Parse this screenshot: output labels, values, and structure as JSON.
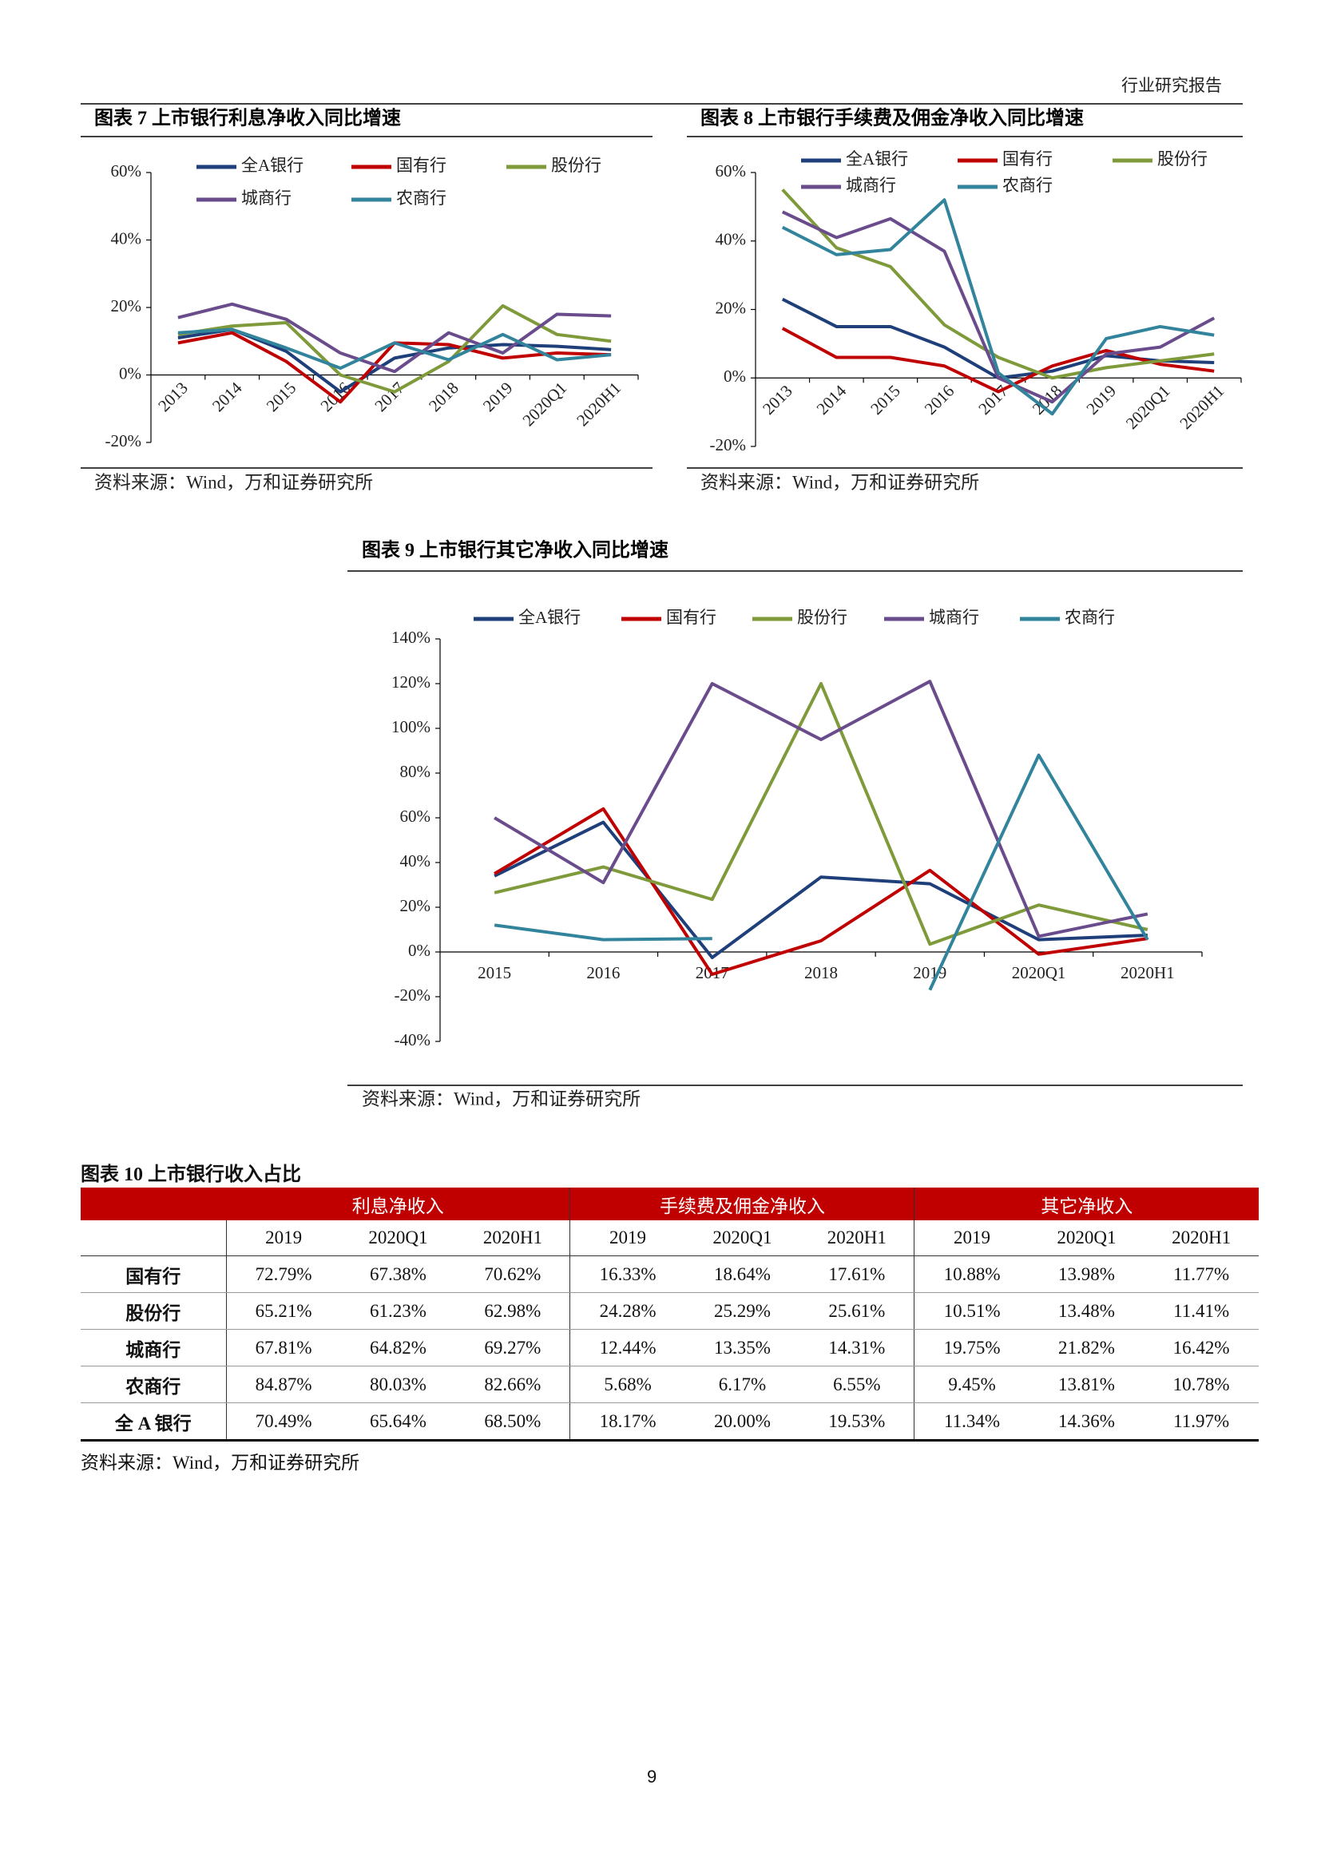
{
  "header": {
    "title": "行业研究报告"
  },
  "chart_data": [
    {
      "type": "line",
      "title": "图表 7 上市银行利息净收入同比增速",
      "source": "资料来源：Wind，万和证券研究所",
      "categories": [
        "2013",
        "2014",
        "2015",
        "2016",
        "2017",
        "2018",
        "2019",
        "2020Q1",
        "2020H1"
      ],
      "series": [
        {
          "name": "全A银行",
          "color": "#1f3f7a",
          "values": [
            11,
            13.5,
            7,
            -5,
            5,
            8,
            9,
            8.5,
            7.5
          ]
        },
        {
          "name": "国有行",
          "color": "#c00000",
          "values": [
            9.5,
            12.5,
            4,
            -8,
            9.5,
            9,
            5,
            6.5,
            6
          ]
        },
        {
          "name": "股份行",
          "color": "#7f9a3a",
          "values": [
            12,
            14.5,
            15.5,
            0,
            -5,
            4,
            20.5,
            12,
            10
          ]
        },
        {
          "name": "城商行",
          "color": "#6a4c8c",
          "values": [
            17,
            21,
            16.5,
            6.5,
            1,
            12.5,
            6.5,
            18,
            17.5
          ]
        },
        {
          "name": "农商行",
          "color": "#31849b",
          "values": [
            12.5,
            13.5,
            8,
            2,
            9.5,
            4.5,
            12,
            4.5,
            6
          ]
        }
      ],
      "ylim": [
        -20,
        60
      ],
      "yticks": [
        {
          "value": -20,
          "label": "-20%"
        },
        {
          "value": 0,
          "label": "0%"
        },
        {
          "value": 20,
          "label": "20%"
        },
        {
          "value": 40,
          "label": "40%"
        },
        {
          "value": 60,
          "label": "60%"
        }
      ]
    },
    {
      "type": "line",
      "title": "图表 8 上市银行手续费及佣金净收入同比增速",
      "source": "资料来源：Wind，万和证券研究所",
      "categories": [
        "2013",
        "2014",
        "2015",
        "2016",
        "2017",
        "2018",
        "2019",
        "2020Q1",
        "2020H1"
      ],
      "series": [
        {
          "name": "全A银行",
          "color": "#1f3f7a",
          "values": [
            23,
            15,
            15,
            9,
            0,
            2,
            6.5,
            5,
            4.5
          ]
        },
        {
          "name": "国有行",
          "color": "#c00000",
          "values": [
            14.5,
            6,
            6,
            3.5,
            -4,
            3.5,
            8,
            4,
            2
          ]
        },
        {
          "name": "股份行",
          "color": "#7f9a3a",
          "values": [
            55,
            38,
            32.5,
            15.5,
            6,
            0,
            3,
            5,
            7
          ]
        },
        {
          "name": "城商行",
          "color": "#6a4c8c",
          "values": [
            48.5,
            41,
            46.5,
            37,
            0,
            -7,
            7,
            9,
            17.5
          ]
        },
        {
          "name": "农商行",
          "color": "#31849b",
          "values": [
            44,
            36,
            37.5,
            52,
            1.5,
            -10.5,
            11.5,
            15,
            12.5
          ]
        }
      ],
      "ylim": [
        -20,
        60
      ],
      "yticks": [
        {
          "value": -20,
          "label": "-20%"
        },
        {
          "value": 0,
          "label": "0%"
        },
        {
          "value": 20,
          "label": "20%"
        },
        {
          "value": 40,
          "label": "40%"
        },
        {
          "value": 60,
          "label": "60%"
        }
      ]
    },
    {
      "type": "line",
      "title": "图表 9 上市银行其它净收入同比增速",
      "source": "资料来源：Wind，万和证券研究所",
      "categories": [
        "2015",
        "2016",
        "2017",
        "2018",
        "2019",
        "2020Q1",
        "2020H1"
      ],
      "series": [
        {
          "name": "全A银行",
          "color": "#1f3f7a",
          "values": [
            34,
            58,
            -2.5,
            33.5,
            30.5,
            5.5,
            7.5
          ]
        },
        {
          "name": "国有行",
          "color": "#c00000",
          "values": [
            35,
            64,
            -10,
            5,
            36.5,
            -1,
            6
          ]
        },
        {
          "name": "股份行",
          "color": "#7f9a3a",
          "values": [
            26.5,
            38,
            23.5,
            120,
            3.5,
            21,
            10
          ]
        },
        {
          "name": "城商行",
          "color": "#6a4c8c",
          "values": [
            60,
            31,
            120,
            95,
            121,
            7,
            17
          ]
        },
        {
          "name": "农商行",
          "color": "#31849b",
          "values": [
            12,
            5.5,
            6,
            null,
            -17,
            88,
            5.5
          ]
        }
      ],
      "ylim": [
        -40,
        140
      ],
      "yticks": [
        {
          "value": -40,
          "label": "-40%"
        },
        {
          "value": -20,
          "label": "-20%"
        },
        {
          "value": 0,
          "label": "0%"
        },
        {
          "value": 20,
          "label": "20%"
        },
        {
          "value": 40,
          "label": "40%"
        },
        {
          "value": 60,
          "label": "60%"
        },
        {
          "value": 80,
          "label": "80%"
        },
        {
          "value": 100,
          "label": "100%"
        },
        {
          "value": 120,
          "label": "120%"
        },
        {
          "value": 140,
          "label": "140%"
        }
      ]
    }
  ],
  "table": {
    "title": "图表 10 上市银行收入占比",
    "groups": [
      "利息净收入",
      "手续费及佣金净收入",
      "其它净收入"
    ],
    "columns": [
      "2019",
      "2020Q1",
      "2020H1",
      "2019",
      "2020Q1",
      "2020H1",
      "2019",
      "2020Q1",
      "2020H1"
    ],
    "rows": [
      {
        "label": "国有行",
        "values": [
          "72.79%",
          "67.38%",
          "70.62%",
          "16.33%",
          "18.64%",
          "17.61%",
          "10.88%",
          "13.98%",
          "11.77%"
        ]
      },
      {
        "label": "股份行",
        "values": [
          "65.21%",
          "61.23%",
          "62.98%",
          "24.28%",
          "25.29%",
          "25.61%",
          "10.51%",
          "13.48%",
          "11.41%"
        ]
      },
      {
        "label": "城商行",
        "values": [
          "67.81%",
          "64.82%",
          "69.27%",
          "12.44%",
          "13.35%",
          "14.31%",
          "19.75%",
          "21.82%",
          "16.42%"
        ]
      },
      {
        "label": "农商行",
        "values": [
          "84.87%",
          "80.03%",
          "82.66%",
          "5.68%",
          "6.17%",
          "6.55%",
          "9.45%",
          "13.81%",
          "10.78%"
        ]
      },
      {
        "label": "全 A 银行",
        "values": [
          "70.49%",
          "65.64%",
          "68.50%",
          "18.17%",
          "20.00%",
          "19.53%",
          "11.34%",
          "14.36%",
          "11.97%"
        ]
      }
    ],
    "source": "资料来源：Wind，万和证券研究所"
  },
  "page_number": "9"
}
